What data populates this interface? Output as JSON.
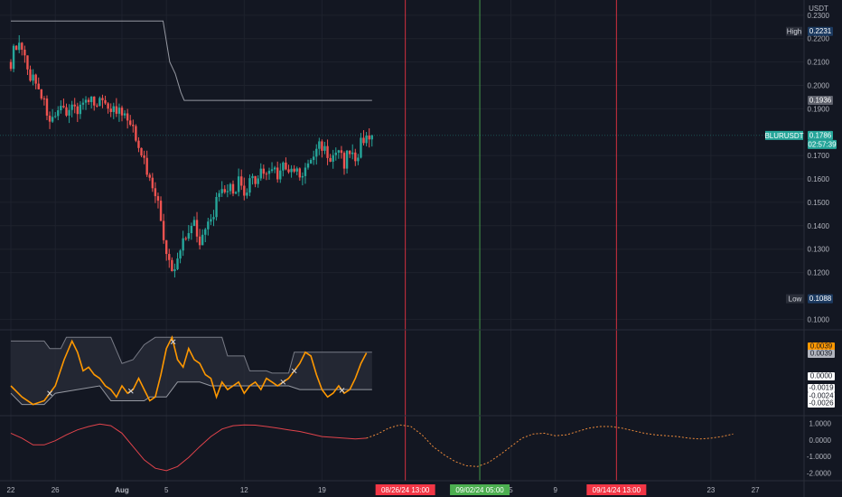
{
  "chart_data": [
    {
      "type": "candlestick",
      "symbol": "BLURUSDT",
      "currency_label": "USDT",
      "last_price": "0.1786",
      "countdown": "02:57:39",
      "high": {
        "label": "High",
        "value": "0.2231"
      },
      "low": {
        "label": "Low",
        "value": "0.1088"
      },
      "ma_level": "0.1936",
      "ylim": [
        0.0955,
        0.2365
      ],
      "y_ticks": [
        "0.2300",
        "0.2200",
        "0.2100",
        "0.2000",
        "0.1900",
        "0.1700",
        "0.1600",
        "0.1500",
        "0.1400",
        "0.1300",
        "0.1200",
        "0.1000"
      ],
      "x_axis": {
        "ticks": [
          {
            "label": "22",
            "day": 0
          },
          {
            "label": "26",
            "day": 4
          },
          {
            "label": "Aug",
            "day": 10
          },
          {
            "label": "5",
            "day": 14
          },
          {
            "label": "12",
            "day": 21
          },
          {
            "label": "19",
            "day": 28
          },
          {
            "label": "5",
            "day": 45
          },
          {
            "label": "9",
            "day": 49
          },
          {
            "label": "23",
            "day": 63
          },
          {
            "label": "27",
            "day": 67
          }
        ],
        "markers": [
          {
            "label": "08/26/24  13:00",
            "day": 35.5,
            "color": "#f23645"
          },
          {
            "label": "09/02/24  05:00",
            "day": 42.2,
            "color": "#4caf50"
          },
          {
            "label": "09/14/24  13:00",
            "day": 54.5,
            "color": "#f23645"
          }
        ]
      },
      "price_path": [
        [
          0,
          0.21
        ],
        [
          0.5,
          0.218
        ],
        [
          1,
          0.214
        ],
        [
          1.5,
          0.206
        ],
        [
          2,
          0.203
        ],
        [
          2.5,
          0.2
        ],
        [
          3,
          0.192
        ],
        [
          3.5,
          0.186
        ],
        [
          4,
          0.184
        ],
        [
          4.5,
          0.189
        ],
        [
          5,
          0.19
        ],
        [
          5.5,
          0.191
        ],
        [
          6,
          0.19
        ],
        [
          6.5,
          0.193
        ],
        [
          7,
          0.191
        ],
        [
          7.5,
          0.194
        ],
        [
          8,
          0.193
        ],
        [
          8.5,
          0.194
        ],
        [
          9,
          0.19
        ],
        [
          9.5,
          0.189
        ],
        [
          10,
          0.187
        ],
        [
          10.5,
          0.185
        ],
        [
          11,
          0.18
        ],
        [
          11.5,
          0.176
        ],
        [
          12,
          0.167
        ],
        [
          12.5,
          0.16
        ],
        [
          13,
          0.155
        ],
        [
          13.5,
          0.142
        ],
        [
          14,
          0.128
        ],
        [
          14.5,
          0.119
        ],
        [
          15,
          0.125
        ],
        [
          15.5,
          0.135
        ],
        [
          16,
          0.138
        ],
        [
          16.5,
          0.142
        ],
        [
          17,
          0.134
        ],
        [
          17.5,
          0.137
        ],
        [
          18,
          0.142
        ],
        [
          18.5,
          0.15
        ],
        [
          19,
          0.153
        ],
        [
          19.5,
          0.156
        ],
        [
          20,
          0.155
        ],
        [
          20.5,
          0.159
        ],
        [
          21,
          0.151
        ],
        [
          21.5,
          0.158
        ],
        [
          22,
          0.16
        ],
        [
          22.5,
          0.164
        ],
        [
          23,
          0.161
        ],
        [
          23.5,
          0.166
        ],
        [
          24,
          0.162
        ],
        [
          24.5,
          0.165
        ],
        [
          25,
          0.162
        ],
        [
          25.5,
          0.164
        ],
        [
          26,
          0.161
        ],
        [
          26.5,
          0.163
        ],
        [
          27,
          0.168
        ],
        [
          27.5,
          0.173
        ],
        [
          28,
          0.175
        ],
        [
          28.5,
          0.17
        ],
        [
          29,
          0.168
        ],
        [
          29.5,
          0.171
        ],
        [
          30,
          0.167
        ],
        [
          30.5,
          0.172
        ],
        [
          31,
          0.168
        ],
        [
          31.5,
          0.175
        ],
        [
          32,
          0.18
        ],
        [
          32.5,
          0.178
        ]
      ],
      "ma_path": [
        [
          0,
          0.2275
        ],
        [
          13.7,
          0.2275
        ],
        [
          14.3,
          0.21
        ],
        [
          14.8,
          0.205
        ],
        [
          15.3,
          0.197
        ],
        [
          15.6,
          0.1936
        ],
        [
          32.5,
          0.1936
        ]
      ]
    },
    {
      "type": "oscillator",
      "ylim": [
        -0.0045,
        0.007
      ],
      "labels": [
        {
          "text": "0.0039",
          "style": "orange"
        },
        {
          "text": "0.0039",
          "style": "grey"
        },
        {
          "text": "0.0000",
          "style": "white"
        },
        {
          "text": "-0.0019",
          "style": "white"
        },
        {
          "text": "-0.0024",
          "style": "white"
        },
        {
          "text": "-0.0026",
          "style": "white"
        }
      ],
      "line": [
        [
          0,
          -0.0005
        ],
        [
          1,
          -0.002
        ],
        [
          2,
          -0.003
        ],
        [
          3,
          -0.0025
        ],
        [
          4,
          -0.0005
        ],
        [
          4.8,
          0.003
        ],
        [
          5.5,
          0.0055
        ],
        [
          6,
          0.004
        ],
        [
          6.5,
          0.0015
        ],
        [
          7,
          0.002
        ],
        [
          7.5,
          0.001
        ],
        [
          8,
          0.0005
        ],
        [
          8.5,
          -0.0005
        ],
        [
          9,
          -0.001
        ],
        [
          9.5,
          -0.002
        ],
        [
          10,
          -0.0005
        ],
        [
          10.5,
          -0.0015
        ],
        [
          11,
          -0.001
        ],
        [
          11.5,
          0.0005
        ],
        [
          12,
          -0.001
        ],
        [
          12.5,
          -0.0025
        ],
        [
          13,
          -0.002
        ],
        [
          13.5,
          0.001
        ],
        [
          14,
          0.0045
        ],
        [
          14.5,
          0.006
        ],
        [
          15,
          0.003
        ],
        [
          15.5,
          0.002
        ],
        [
          16,
          0.0045
        ],
        [
          16.5,
          0.003
        ],
        [
          17,
          0.0025
        ],
        [
          17.5,
          0.001
        ],
        [
          18,
          0.0005
        ],
        [
          18.5,
          -0.002
        ],
        [
          19,
          0.0
        ],
        [
          19.5,
          -0.001
        ],
        [
          20,
          -0.0005
        ],
        [
          20.5,
          0.0
        ],
        [
          21,
          -0.0015
        ],
        [
          21.5,
          -0.0005
        ],
        [
          22,
          0.0
        ],
        [
          22.5,
          -0.001
        ],
        [
          23,
          0.0005
        ],
        [
          23.5,
          0.0
        ],
        [
          24,
          -0.0005
        ],
        [
          24.5,
          0.0
        ],
        [
          25,
          0.0005
        ],
        [
          26,
          0.0025
        ],
        [
          26.5,
          0.004
        ],
        [
          27,
          0.0035
        ],
        [
          27.5,
          0.001
        ],
        [
          28,
          -0.001
        ],
        [
          28.5,
          -0.002
        ],
        [
          29,
          -0.0015
        ],
        [
          29.5,
          -0.0005
        ],
        [
          30,
          -0.0015
        ],
        [
          30.5,
          -0.001
        ],
        [
          31,
          0.0005
        ],
        [
          31.5,
          0.0025
        ],
        [
          32,
          0.0039
        ]
      ],
      "band_upper": [
        [
          0,
          0.0055
        ],
        [
          3,
          0.0055
        ],
        [
          3.5,
          0.0045
        ],
        [
          4.5,
          0.0045
        ],
        [
          5,
          0.006
        ],
        [
          9,
          0.006
        ],
        [
          10,
          0.0025
        ],
        [
          11,
          0.003
        ],
        [
          12,
          0.005
        ],
        [
          13,
          0.006
        ],
        [
          19,
          0.006
        ],
        [
          19.5,
          0.0035
        ],
        [
          21,
          0.0035
        ],
        [
          21.5,
          0.0015
        ],
        [
          23,
          0.0015
        ],
        [
          23.5,
          0.0012
        ],
        [
          25,
          0.0012
        ],
        [
          25.5,
          0.004
        ],
        [
          32.5,
          0.004
        ]
      ],
      "band_lower": [
        [
          0,
          -0.0015
        ],
        [
          1,
          -0.003
        ],
        [
          3,
          -0.003
        ],
        [
          4,
          -0.0015
        ],
        [
          8,
          -0.0005
        ],
        [
          9,
          -0.0025
        ],
        [
          12,
          -0.0025
        ],
        [
          12.5,
          -0.002
        ],
        [
          14,
          -0.002
        ],
        [
          15,
          0.0
        ],
        [
          17,
          0.0
        ],
        [
          18,
          -0.0005
        ],
        [
          19,
          -0.0005
        ],
        [
          20,
          -0.0005
        ],
        [
          23,
          -0.0005
        ],
        [
          24,
          -0.0005
        ],
        [
          25,
          -0.0005
        ],
        [
          26,
          -0.001
        ],
        [
          32.5,
          -0.001
        ]
      ]
    },
    {
      "type": "line",
      "ylim": [
        -2.45,
        1.45
      ],
      "y_ticks": [
        "1.0000",
        "0.0000",
        "-1.0000",
        "-2.0000"
      ],
      "actual": [
        [
          0,
          0.4
        ],
        [
          1,
          0.1
        ],
        [
          2,
          -0.3
        ],
        [
          3,
          -0.3
        ],
        [
          4,
          -0.05
        ],
        [
          5,
          0.3
        ],
        [
          6,
          0.6
        ],
        [
          7,
          0.8
        ],
        [
          8,
          0.95
        ],
        [
          9,
          0.85
        ],
        [
          10,
          0.4
        ],
        [
          11,
          -0.4
        ],
        [
          12,
          -1.2
        ],
        [
          13,
          -1.7
        ],
        [
          14,
          -1.85
        ],
        [
          15,
          -1.6
        ],
        [
          16,
          -1.05
        ],
        [
          17,
          -0.4
        ],
        [
          18,
          0.2
        ],
        [
          19,
          0.65
        ],
        [
          20,
          0.85
        ],
        [
          21,
          0.9
        ],
        [
          22,
          0.88
        ],
        [
          23,
          0.8
        ],
        [
          24,
          0.7
        ],
        [
          25,
          0.6
        ],
        [
          26,
          0.5
        ],
        [
          27,
          0.35
        ],
        [
          28,
          0.2
        ],
        [
          29,
          0.15
        ],
        [
          30,
          0.1
        ],
        [
          31,
          0.05
        ],
        [
          32,
          0.1
        ]
      ],
      "forecast": [
        [
          32,
          0.1
        ],
        [
          33,
          0.35
        ],
        [
          34,
          0.7
        ],
        [
          35,
          0.9
        ],
        [
          36,
          0.8
        ],
        [
          37,
          0.3
        ],
        [
          38,
          -0.4
        ],
        [
          39,
          -0.9
        ],
        [
          40,
          -1.3
        ],
        [
          41,
          -1.55
        ],
        [
          42,
          -1.6
        ],
        [
          43,
          -1.35
        ],
        [
          44,
          -0.9
        ],
        [
          45,
          -0.4
        ],
        [
          46,
          0.1
        ],
        [
          47,
          0.35
        ],
        [
          48,
          0.4
        ],
        [
          49,
          0.25
        ],
        [
          50,
          0.3
        ],
        [
          51,
          0.5
        ],
        [
          52,
          0.7
        ],
        [
          53,
          0.8
        ],
        [
          54,
          0.8
        ],
        [
          55,
          0.7
        ],
        [
          56,
          0.55
        ],
        [
          57,
          0.4
        ],
        [
          58,
          0.3
        ],
        [
          59,
          0.25
        ],
        [
          60,
          0.2
        ],
        [
          61,
          0.1
        ],
        [
          62,
          0.05
        ],
        [
          63,
          0.1
        ],
        [
          64,
          0.2
        ],
        [
          65,
          0.35
        ]
      ]
    }
  ]
}
